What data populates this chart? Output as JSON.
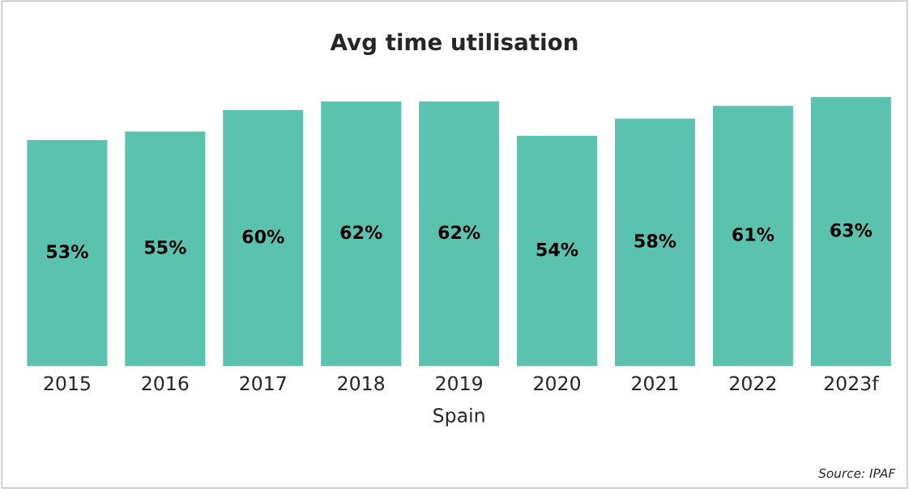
{
  "chart_data": {
    "type": "bar",
    "title": "Avg time utilisation",
    "xlabel": "Spain",
    "categories": [
      "2015",
      "2016",
      "2017",
      "2018",
      "2019",
      "2020",
      "2021",
      "2022",
      "2023f"
    ],
    "values": [
      53,
      55,
      60,
      62,
      62,
      54,
      58,
      61,
      63
    ],
    "value_labels": [
      "53%",
      "55%",
      "60%",
      "62%",
      "62%",
      "54%",
      "58%",
      "61%",
      "63%"
    ],
    "color": "#5bc3ad",
    "grid": false,
    "legend": false,
    "annotations": [
      "Source: IPAF"
    ]
  }
}
